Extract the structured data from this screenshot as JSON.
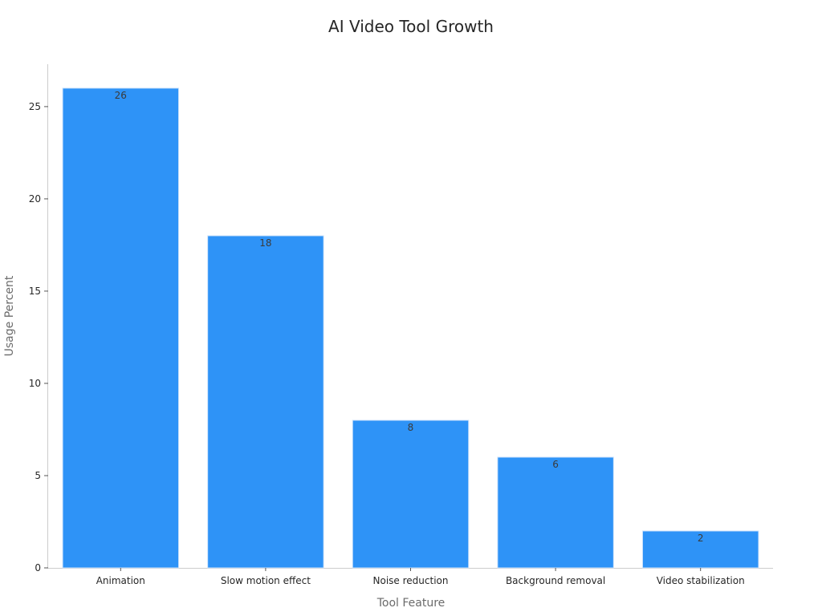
{
  "chart_data": {
    "type": "bar",
    "title": "AI Video Tool Growth",
    "xlabel": "Tool Feature",
    "ylabel": "Usage Percent",
    "categories": [
      "Animation",
      "Slow motion effect",
      "Noise reduction",
      "Background removal",
      "Video stabilization"
    ],
    "values": [
      26,
      18,
      8,
      6,
      2
    ],
    "data_labels": [
      "26",
      "18",
      "8",
      "6",
      "2"
    ],
    "ylim": [
      0,
      27.3
    ],
    "yticks": [
      0,
      5,
      10,
      15,
      20,
      25
    ],
    "ytick_labels": [
      "0",
      "5",
      "10",
      "15",
      "20",
      "25"
    ],
    "grid": false,
    "legend": "none",
    "bar_color": "#2E93F7"
  }
}
